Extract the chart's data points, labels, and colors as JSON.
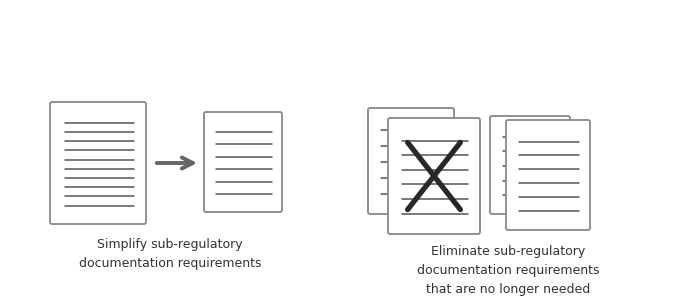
{
  "bg_color": "#ffffff",
  "doc_outline_color": "#888888",
  "line_color": "#555555",
  "arrow_color": "#666666",
  "x_color": "#282828",
  "text_color": "#333333",
  "left_label": "Simplify sub-regulatory\ndocumentation requirements",
  "right_label": "Eliminate sub-regulatory\ndocumentation requirements\nthat are no longer needed",
  "font_size": 9.0,
  "figw": 6.78,
  "figh": 3.0,
  "dpi": 100
}
